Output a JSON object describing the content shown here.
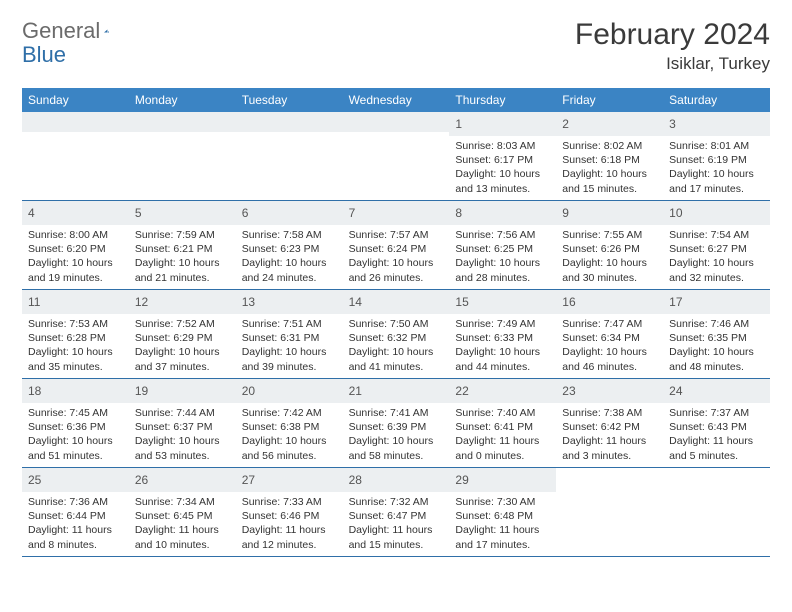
{
  "logo": {
    "text1": "General",
    "text2": "Blue"
  },
  "title": "February 2024",
  "location": "Isiklar, Turkey",
  "colors": {
    "header_bg": "#3b84c4",
    "header_text": "#ffffff",
    "daynum_bg": "#eceff1",
    "border": "#2f6fa8",
    "logo_gray": "#6b6b6b",
    "logo_blue": "#2f6fa8",
    "title_color": "#3a3a3a"
  },
  "dayNames": [
    "Sunday",
    "Monday",
    "Tuesday",
    "Wednesday",
    "Thursday",
    "Friday",
    "Saturday"
  ],
  "grid": {
    "leadingBlanks": 4,
    "days": [
      {
        "n": 1,
        "sr": "8:03 AM",
        "ss": "6:17 PM",
        "dl": "10 hours and 13 minutes."
      },
      {
        "n": 2,
        "sr": "8:02 AM",
        "ss": "6:18 PM",
        "dl": "10 hours and 15 minutes."
      },
      {
        "n": 3,
        "sr": "8:01 AM",
        "ss": "6:19 PM",
        "dl": "10 hours and 17 minutes."
      },
      {
        "n": 4,
        "sr": "8:00 AM",
        "ss": "6:20 PM",
        "dl": "10 hours and 19 minutes."
      },
      {
        "n": 5,
        "sr": "7:59 AM",
        "ss": "6:21 PM",
        "dl": "10 hours and 21 minutes."
      },
      {
        "n": 6,
        "sr": "7:58 AM",
        "ss": "6:23 PM",
        "dl": "10 hours and 24 minutes."
      },
      {
        "n": 7,
        "sr": "7:57 AM",
        "ss": "6:24 PM",
        "dl": "10 hours and 26 minutes."
      },
      {
        "n": 8,
        "sr": "7:56 AM",
        "ss": "6:25 PM",
        "dl": "10 hours and 28 minutes."
      },
      {
        "n": 9,
        "sr": "7:55 AM",
        "ss": "6:26 PM",
        "dl": "10 hours and 30 minutes."
      },
      {
        "n": 10,
        "sr": "7:54 AM",
        "ss": "6:27 PM",
        "dl": "10 hours and 32 minutes."
      },
      {
        "n": 11,
        "sr": "7:53 AM",
        "ss": "6:28 PM",
        "dl": "10 hours and 35 minutes."
      },
      {
        "n": 12,
        "sr": "7:52 AM",
        "ss": "6:29 PM",
        "dl": "10 hours and 37 minutes."
      },
      {
        "n": 13,
        "sr": "7:51 AM",
        "ss": "6:31 PM",
        "dl": "10 hours and 39 minutes."
      },
      {
        "n": 14,
        "sr": "7:50 AM",
        "ss": "6:32 PM",
        "dl": "10 hours and 41 minutes."
      },
      {
        "n": 15,
        "sr": "7:49 AM",
        "ss": "6:33 PM",
        "dl": "10 hours and 44 minutes."
      },
      {
        "n": 16,
        "sr": "7:47 AM",
        "ss": "6:34 PM",
        "dl": "10 hours and 46 minutes."
      },
      {
        "n": 17,
        "sr": "7:46 AM",
        "ss": "6:35 PM",
        "dl": "10 hours and 48 minutes."
      },
      {
        "n": 18,
        "sr": "7:45 AM",
        "ss": "6:36 PM",
        "dl": "10 hours and 51 minutes."
      },
      {
        "n": 19,
        "sr": "7:44 AM",
        "ss": "6:37 PM",
        "dl": "10 hours and 53 minutes."
      },
      {
        "n": 20,
        "sr": "7:42 AM",
        "ss": "6:38 PM",
        "dl": "10 hours and 56 minutes."
      },
      {
        "n": 21,
        "sr": "7:41 AM",
        "ss": "6:39 PM",
        "dl": "10 hours and 58 minutes."
      },
      {
        "n": 22,
        "sr": "7:40 AM",
        "ss": "6:41 PM",
        "dl": "11 hours and 0 minutes."
      },
      {
        "n": 23,
        "sr": "7:38 AM",
        "ss": "6:42 PM",
        "dl": "11 hours and 3 minutes."
      },
      {
        "n": 24,
        "sr": "7:37 AM",
        "ss": "6:43 PM",
        "dl": "11 hours and 5 minutes."
      },
      {
        "n": 25,
        "sr": "7:36 AM",
        "ss": "6:44 PM",
        "dl": "11 hours and 8 minutes."
      },
      {
        "n": 26,
        "sr": "7:34 AM",
        "ss": "6:45 PM",
        "dl": "11 hours and 10 minutes."
      },
      {
        "n": 27,
        "sr": "7:33 AM",
        "ss": "6:46 PM",
        "dl": "11 hours and 12 minutes."
      },
      {
        "n": 28,
        "sr": "7:32 AM",
        "ss": "6:47 PM",
        "dl": "11 hours and 15 minutes."
      },
      {
        "n": 29,
        "sr": "7:30 AM",
        "ss": "6:48 PM",
        "dl": "11 hours and 17 minutes."
      }
    ]
  },
  "labels": {
    "sunrise": "Sunrise:",
    "sunset": "Sunset:",
    "daylight": "Daylight:"
  }
}
